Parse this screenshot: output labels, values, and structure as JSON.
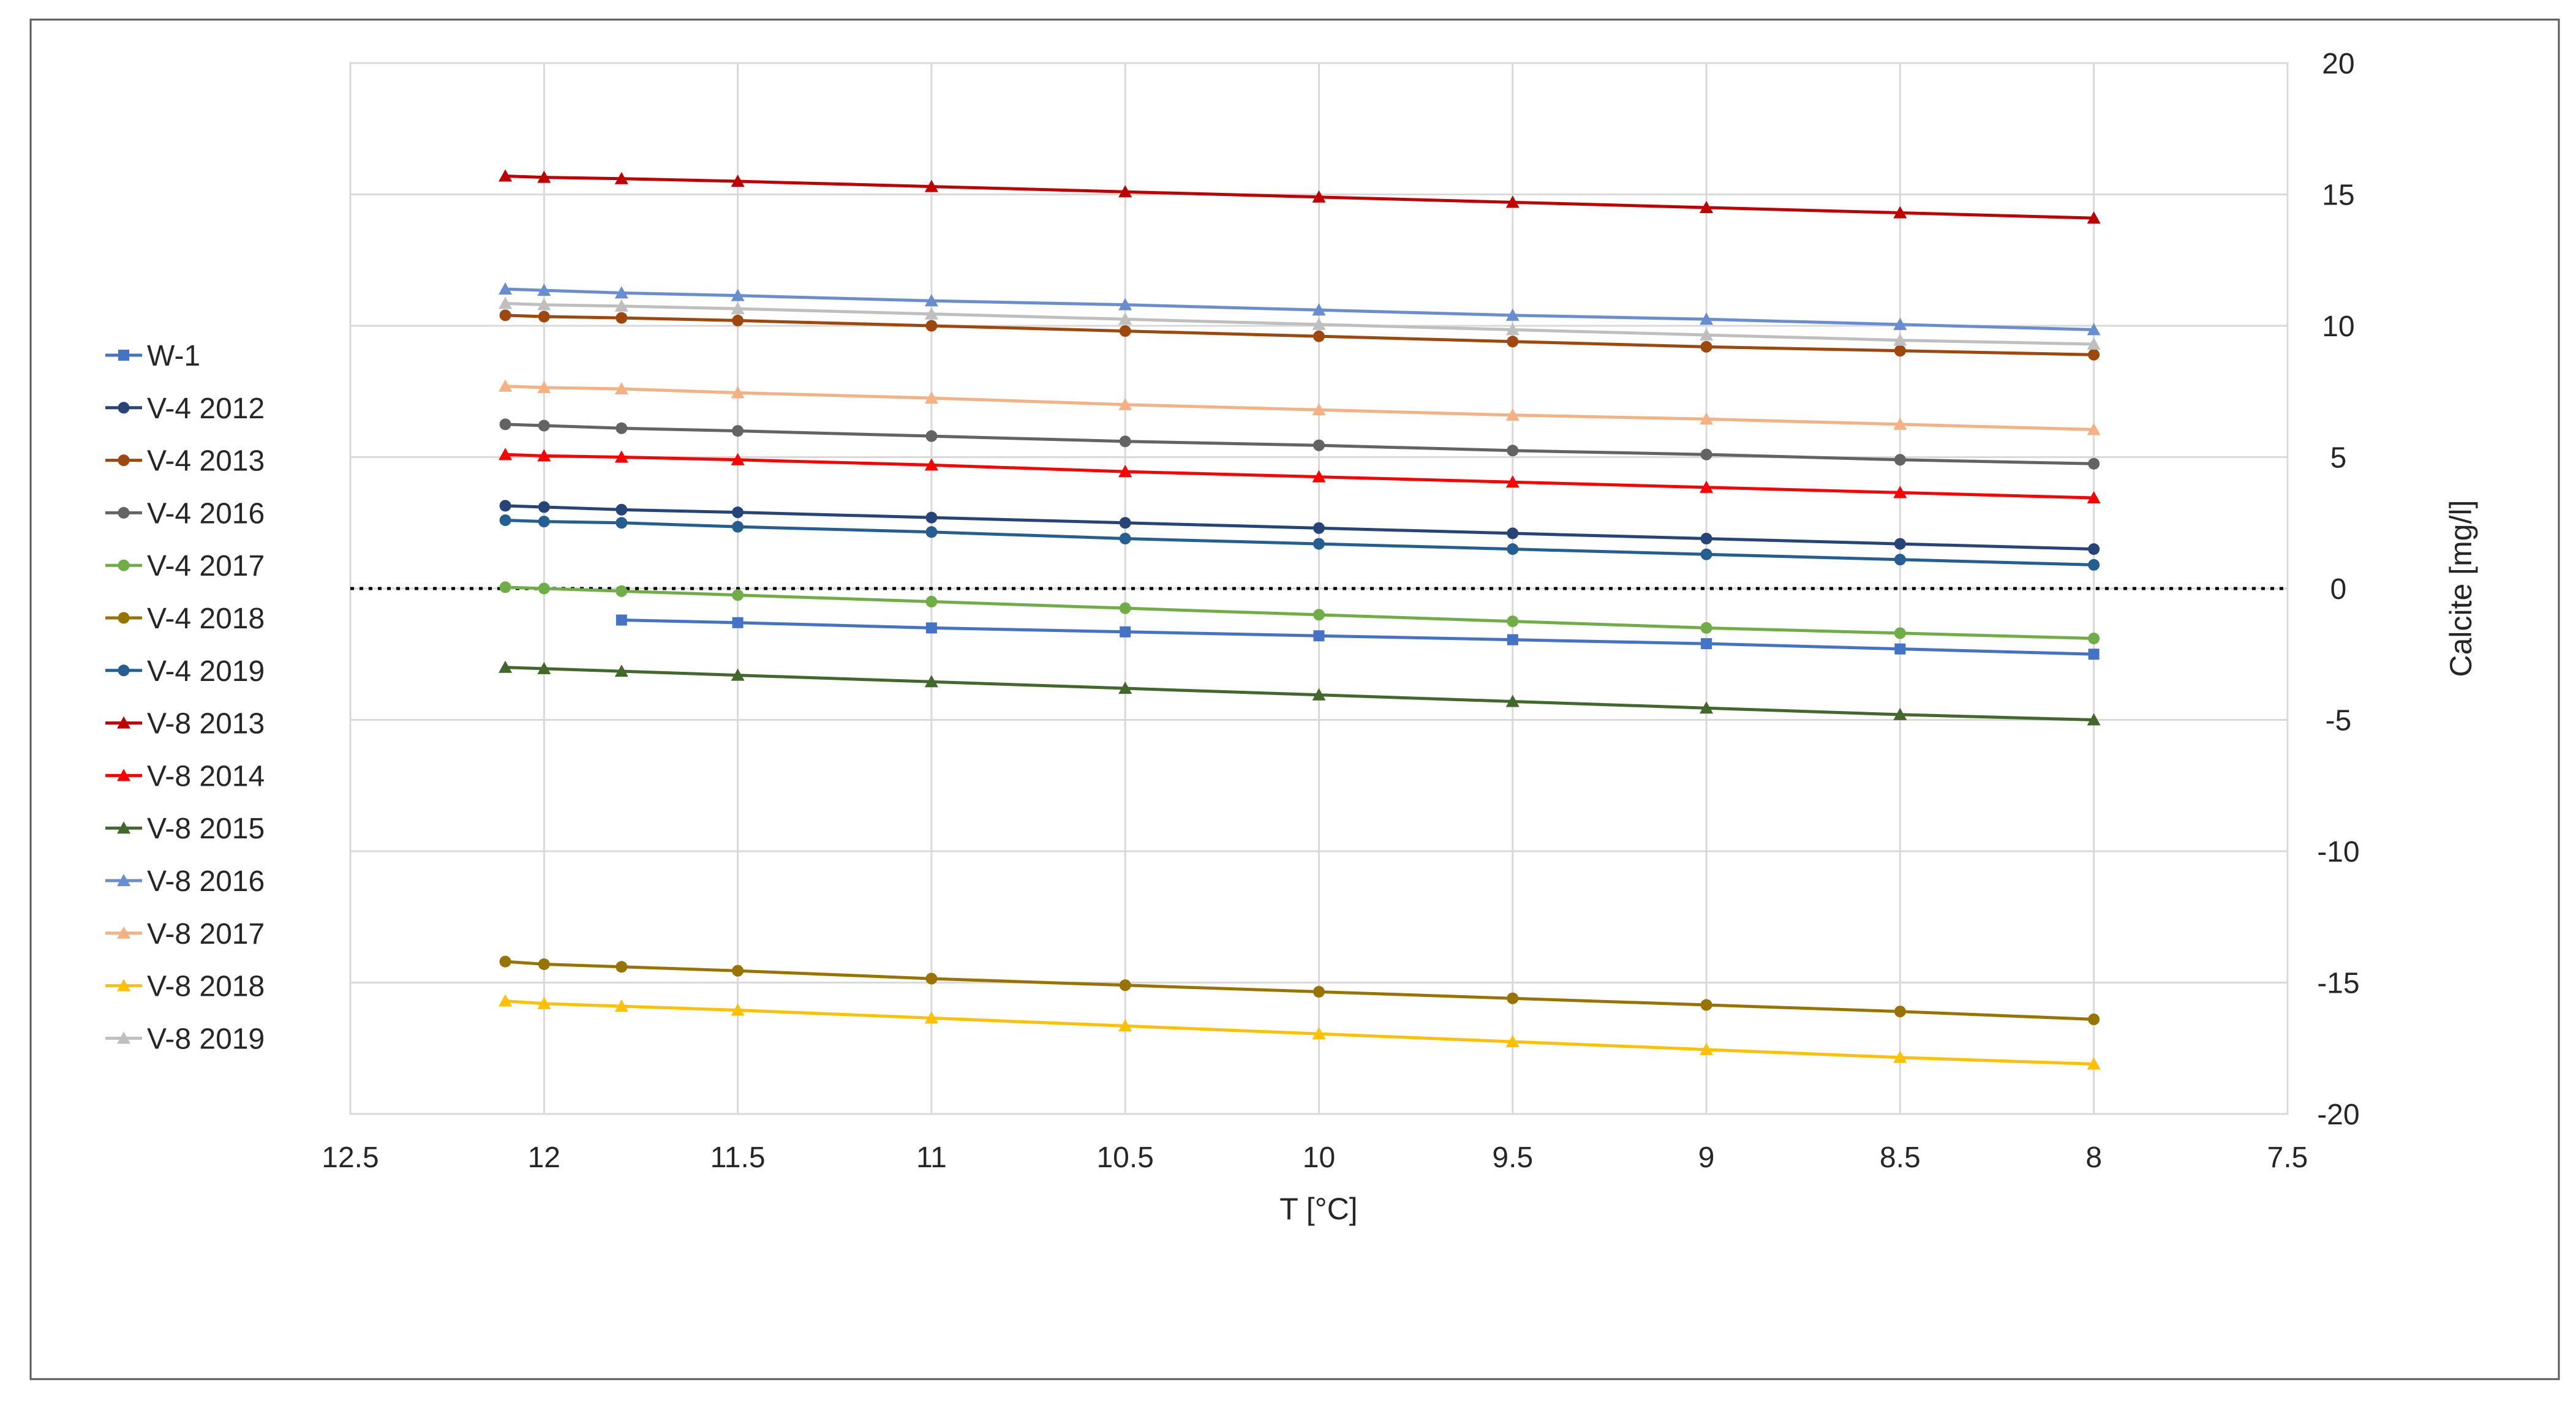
{
  "chart_data": {
    "type": "line",
    "title": "",
    "xlabel": "T [°C]",
    "ylabel": "Calcite [mg/l]",
    "x_reversed": true,
    "xlim": [
      12.5,
      7.5
    ],
    "ylim": [
      -20,
      20
    ],
    "x_ticks": [
      "12.5",
      "12",
      "11.5",
      "11",
      "10.5",
      "10",
      "9.5",
      "9",
      "8.5",
      "8",
      "7.5"
    ],
    "y_ticks": [
      "20",
      "15",
      "10",
      "5",
      "0",
      "-5",
      "-10",
      "-15",
      "-20"
    ],
    "grid": "on",
    "legend_position": "left",
    "reference_line": {
      "y": 0,
      "style": "dotted",
      "color": "#000000"
    },
    "x": [
      12.1,
      12,
      11.8,
      11.5,
      11,
      10.5,
      10,
      9.5,
      9,
      8.5,
      8
    ],
    "series": [
      {
        "name": "W-1",
        "color": "#4472C4",
        "marker": "square",
        "x": [
          11.8,
          11.5,
          11,
          10.5,
          10,
          9.5,
          9,
          8.5,
          8
        ],
        "values": [
          -1.2,
          -1.3,
          -1.5,
          -1.65,
          -1.8,
          -1.95,
          -2.1,
          -2.3,
          -2.5
        ]
      },
      {
        "name": "V-4 2012",
        "color": "#264478",
        "marker": "circle",
        "values": [
          3.15,
          3.1,
          3.0,
          2.9,
          2.7,
          2.5,
          2.3,
          2.1,
          1.9,
          1.7,
          1.5
        ]
      },
      {
        "name": "V-4 2013",
        "color": "#9E480E",
        "marker": "circle",
        "values": [
          10.4,
          10.35,
          10.3,
          10.2,
          10.0,
          9.8,
          9.6,
          9.4,
          9.2,
          9.05,
          8.9
        ]
      },
      {
        "name": "V-4 2016",
        "color": "#636363",
        "marker": "circle",
        "values": [
          6.25,
          6.2,
          6.1,
          6.0,
          5.8,
          5.6,
          5.45,
          5.25,
          5.1,
          4.9,
          4.75
        ]
      },
      {
        "name": "V-4 2017",
        "color": "#70AD47",
        "marker": "circle",
        "values": [
          0.05,
          0.0,
          -0.1,
          -0.25,
          -0.5,
          -0.75,
          -1.0,
          -1.25,
          -1.5,
          -1.7,
          -1.9
        ]
      },
      {
        "name": "V-4 2018",
        "color": "#997300",
        "marker": "circle",
        "values": [
          -14.2,
          -14.3,
          -14.4,
          -14.55,
          -14.85,
          -15.1,
          -15.35,
          -15.6,
          -15.85,
          -16.1,
          -16.4
        ]
      },
      {
        "name": "V-4 2019",
        "color": "#255E91",
        "marker": "circle",
        "values": [
          2.6,
          2.55,
          2.5,
          2.35,
          2.15,
          1.9,
          1.7,
          1.5,
          1.3,
          1.1,
          0.9
        ]
      },
      {
        "name": "V-8 2013",
        "color": "#C00000",
        "marker": "triangle",
        "values": [
          15.7,
          15.65,
          15.6,
          15.5,
          15.3,
          15.1,
          14.9,
          14.7,
          14.5,
          14.3,
          14.1
        ]
      },
      {
        "name": "V-8 2014",
        "color": "#FF0000",
        "marker": "triangle",
        "values": [
          5.1,
          5.05,
          5.0,
          4.9,
          4.7,
          4.45,
          4.25,
          4.05,
          3.85,
          3.65,
          3.45
        ]
      },
      {
        "name": "V-8 2015",
        "color": "#43682B",
        "marker": "triangle",
        "values": [
          -3.0,
          -3.05,
          -3.15,
          -3.3,
          -3.55,
          -3.8,
          -4.05,
          -4.3,
          -4.55,
          -4.8,
          -5.0
        ]
      },
      {
        "name": "V-8 2016",
        "color": "#698ED0",
        "marker": "triangle",
        "values": [
          11.4,
          11.35,
          11.25,
          11.15,
          10.95,
          10.8,
          10.6,
          10.4,
          10.25,
          10.05,
          9.85
        ]
      },
      {
        "name": "V-8 2017",
        "color": "#F4B183",
        "marker": "triangle",
        "values": [
          7.7,
          7.65,
          7.6,
          7.45,
          7.25,
          7.0,
          6.8,
          6.6,
          6.45,
          6.25,
          6.05
        ]
      },
      {
        "name": "V-8 2018",
        "color": "#FFC000",
        "marker": "triangle",
        "values": [
          -15.7,
          -15.8,
          -15.9,
          -16.05,
          -16.35,
          -16.65,
          -16.95,
          -17.25,
          -17.55,
          -17.85,
          -18.1
        ]
      },
      {
        "name": "V-8 2019",
        "color": "#BFBFBF",
        "marker": "triangle",
        "values": [
          10.85,
          10.8,
          10.75,
          10.65,
          10.45,
          10.25,
          10.05,
          9.85,
          9.65,
          9.45,
          9.3
        ]
      }
    ]
  }
}
